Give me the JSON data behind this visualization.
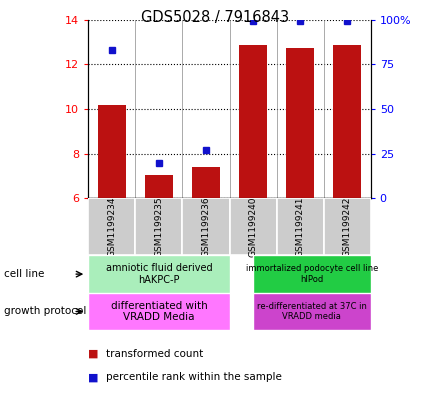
{
  "title": "GDS5028 / 7916843",
  "samples": [
    "GSM1199234",
    "GSM1199235",
    "GSM1199236",
    "GSM1199240",
    "GSM1199241",
    "GSM1199242"
  ],
  "transformed_counts": [
    10.2,
    7.05,
    7.4,
    12.85,
    12.72,
    12.85
  ],
  "percentile_ranks": [
    83,
    20,
    27,
    99,
    99,
    99
  ],
  "ylim_left": [
    6,
    14
  ],
  "ylim_right": [
    0,
    100
  ],
  "yticks_left": [
    6,
    8,
    10,
    12,
    14
  ],
  "yticks_right": [
    0,
    25,
    50,
    75,
    100
  ],
  "bar_color": "#bb1111",
  "dot_color": "#1111cc",
  "cell_line_g1_label": "amniotic fluid derived\nhAKPC-P",
  "cell_line_g1_color": "#aaeebb",
  "cell_line_g2_label": "immortalized podocyte cell line\nhIPod",
  "cell_line_g2_color": "#22cc44",
  "growth_g1_label": "differentiated with\nVRADD Media",
  "growth_g1_color": "#ff77ff",
  "growth_g2_label": "re-differentiated at 37C in\nVRADD media",
  "growth_g2_color": "#cc44cc",
  "cell_line_label": "cell line",
  "growth_protocol_label": "growth protocol",
  "legend_red_label": "transformed count",
  "legend_blue_label": "percentile rank within the sample",
  "bar_width": 0.6,
  "x_positions": [
    0,
    1,
    2,
    3,
    4,
    5
  ],
  "group1_indices": [
    0,
    1,
    2
  ],
  "group2_indices": [
    3,
    4,
    5
  ]
}
